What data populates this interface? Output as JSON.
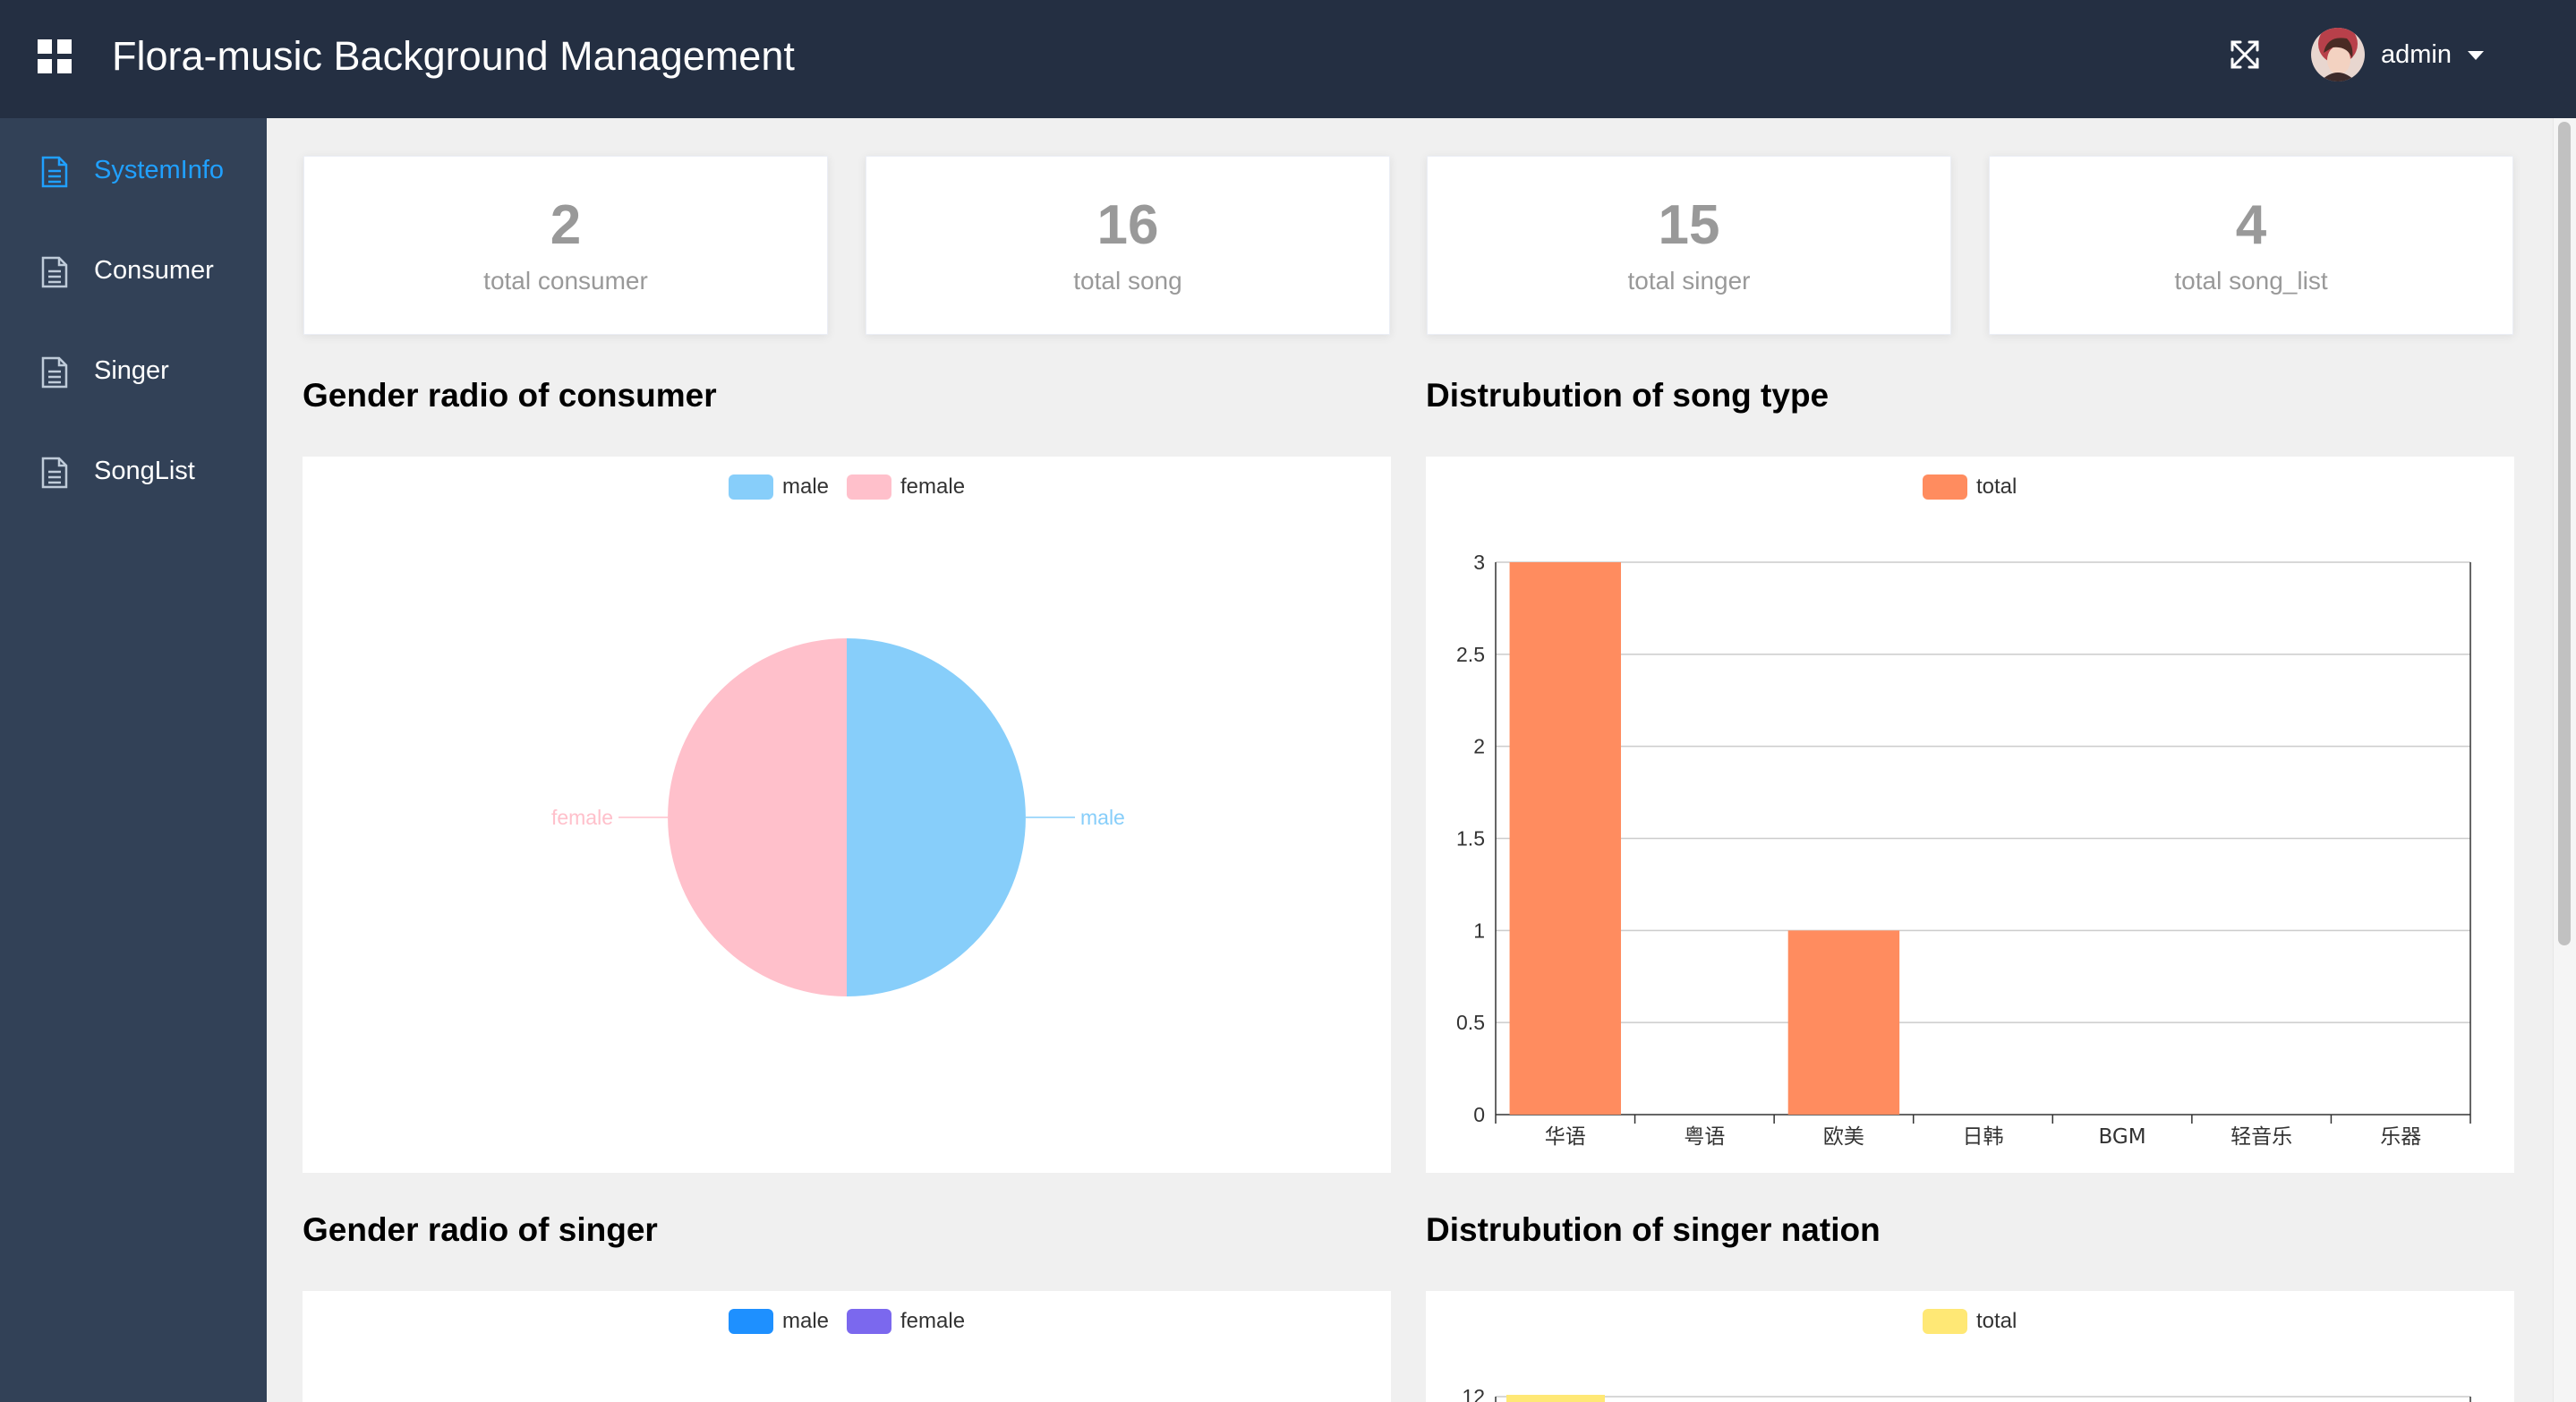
{
  "header": {
    "title": "Flora-music Background Management",
    "user_name": "admin",
    "menu_icon": "grid-icon",
    "fullscreen_icon": "fullscreen-icon"
  },
  "sidebar": {
    "items": [
      {
        "label": "SystemInfo",
        "icon": "document-icon",
        "active": true
      },
      {
        "label": "Consumer",
        "icon": "document-icon",
        "active": false
      },
      {
        "label": "Singer",
        "icon": "document-icon",
        "active": false
      },
      {
        "label": "SongList",
        "icon": "document-icon",
        "active": false
      }
    ]
  },
  "stats": [
    {
      "value": "2",
      "label": "total consumer"
    },
    {
      "value": "16",
      "label": "total song"
    },
    {
      "value": "15",
      "label": "total singer"
    },
    {
      "value": "4",
      "label": "total song_list"
    }
  ],
  "sections": {
    "consumer_gender": "Gender radio of consumer",
    "song_type": "Distrubution of song type",
    "singer_gender": "Gender radio of singer",
    "singer_nation": "Distrubution of singer nation"
  },
  "colors": {
    "header_bg": "#242f42",
    "sidebar_bg": "#324157",
    "active": "#20a0ff",
    "male_consumer": "#87cefa",
    "female_consumer": "#ffc0cb",
    "bar_song": "#ff8c5f",
    "male_singer": "#1e90ff",
    "female_singer": "#7b68ee",
    "bar_nation": "#ffe875"
  },
  "chart_data": [
    {
      "type": "pie",
      "legend": [
        "male",
        "female"
      ],
      "slices": [
        {
          "label": "male",
          "value": 1
        },
        {
          "label": "female",
          "value": 1
        }
      ],
      "legend_position": "top-center"
    },
    {
      "type": "bar",
      "legend": [
        "total"
      ],
      "categories": [
        "华语",
        "粤语",
        "欧美",
        "日韩",
        "BGM",
        "轻音乐",
        "乐器"
      ],
      "series": [
        {
          "name": "total",
          "values": [
            3,
            0,
            1,
            0,
            0,
            0,
            0
          ]
        }
      ],
      "y_ticks": [
        "0",
        "0.5",
        "1",
        "1.5",
        "2",
        "2.5",
        "3"
      ],
      "ylim": [
        0,
        3
      ],
      "grid": true,
      "legend_position": "top-center"
    },
    {
      "type": "pie",
      "legend": [
        "male",
        "female"
      ],
      "legend_position": "top-center"
    },
    {
      "type": "bar",
      "legend": [
        "total"
      ],
      "y_ticks_visible": [
        "12"
      ],
      "legend_position": "top-center"
    }
  ]
}
